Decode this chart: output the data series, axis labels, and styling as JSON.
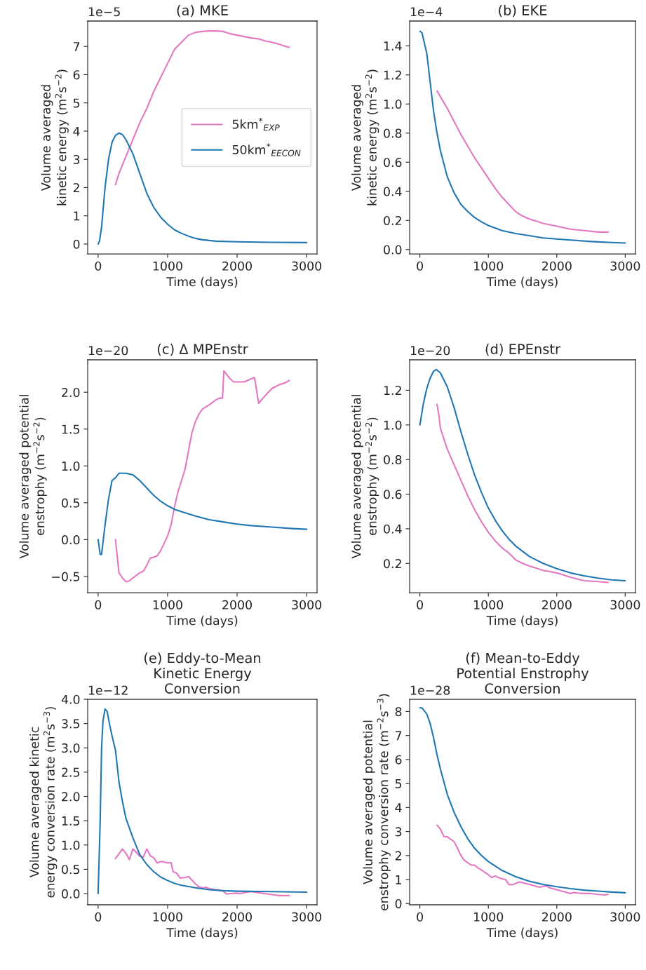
{
  "chart_data": [
    {
      "type": "line",
      "title": "(a) MKE",
      "xlabel": "Time (days)",
      "ylabel": "Volume averaged\nkinetic energy (m$^{2}$s$^{−2}$)",
      "annotations": [
        "1e−5"
      ],
      "xlim": [
        -150,
        3150
      ],
      "xticks": [
        0,
        1000,
        2000,
        3000
      ],
      "ylim": [
        -0.35,
        7.9
      ],
      "yticks": [
        0,
        1,
        2,
        3,
        4,
        5,
        6,
        7
      ],
      "grid": false,
      "legend": "center right",
      "series": [
        {
          "name": "5km$^{*}$$_{EXP}$",
          "color": "#e377c2",
          "x": [
            250,
            300,
            400,
            500,
            600,
            700,
            800,
            900,
            1000,
            1100,
            1200,
            1300,
            1400,
            1500,
            1600,
            1700,
            1800,
            1900,
            2000,
            2100,
            2200,
            2300,
            2400,
            2500,
            2600,
            2700,
            2750
          ],
          "values": [
            2.1,
            2.5,
            3.1,
            3.7,
            4.3,
            4.8,
            5.4,
            5.9,
            6.4,
            6.9,
            7.15,
            7.4,
            7.5,
            7.53,
            7.55,
            7.55,
            7.53,
            7.45,
            7.4,
            7.35,
            7.3,
            7.27,
            7.2,
            7.15,
            7.08,
            7.0,
            6.97
          ]
        },
        {
          "name": "50km$^{*}$$_{EECON}$",
          "color": "#1f77b4",
          "x": [
            0,
            20,
            50,
            100,
            150,
            200,
            250,
            300,
            350,
            400,
            500,
            600,
            700,
            800,
            900,
            1000,
            1100,
            1200,
            1300,
            1400,
            1500,
            1700,
            2000,
            2500,
            3000
          ],
          "values": [
            0.0,
            0.1,
            0.6,
            2.0,
            3.0,
            3.6,
            3.85,
            3.93,
            3.88,
            3.7,
            3.2,
            2.5,
            1.8,
            1.3,
            0.95,
            0.7,
            0.5,
            0.38,
            0.28,
            0.2,
            0.15,
            0.1,
            0.08,
            0.06,
            0.05
          ]
        }
      ]
    },
    {
      "type": "line",
      "title": "(b) EKE",
      "xlabel": "Time (days)",
      "ylabel": "Volume averaged\nkinetic energy (m$^{2}$s$^{−2}$)",
      "annotations": [
        "1e−4"
      ],
      "xlim": [
        -150,
        3150
      ],
      "xticks": [
        0,
        1000,
        2000,
        3000
      ],
      "ylim": [
        -0.03,
        1.57
      ],
      "yticks": [
        {
          "value": 0,
          "label": "0.0"
        },
        0.2,
        0.4,
        0.6,
        0.8,
        {
          "value": 1,
          "label": "1.0"
        },
        1.2,
        1.4
      ],
      "grid": false,
      "series": [
        {
          "color": "#e377c2",
          "x": [
            250,
            300,
            400,
            500,
            600,
            700,
            800,
            900,
            1000,
            1100,
            1200,
            1300,
            1400,
            1500,
            1600,
            1800,
            2000,
            2200,
            2400,
            2600,
            2750
          ],
          "values": [
            1.09,
            1.05,
            0.97,
            0.88,
            0.79,
            0.71,
            0.63,
            0.56,
            0.49,
            0.42,
            0.36,
            0.31,
            0.26,
            0.23,
            0.21,
            0.18,
            0.16,
            0.14,
            0.13,
            0.12,
            0.12
          ]
        },
        {
          "color": "#1f77b4",
          "x": [
            0,
            30,
            100,
            150,
            200,
            250,
            300,
            400,
            500,
            600,
            700,
            800,
            900,
            1000,
            1200,
            1400,
            1600,
            1800,
            2000,
            2200,
            2500,
            2800,
            3000
          ],
          "values": [
            1.5,
            1.49,
            1.35,
            1.15,
            0.95,
            0.8,
            0.68,
            0.5,
            0.39,
            0.31,
            0.26,
            0.22,
            0.19,
            0.165,
            0.13,
            0.11,
            0.095,
            0.08,
            0.072,
            0.065,
            0.055,
            0.048,
            0.045
          ]
        }
      ]
    },
    {
      "type": "line",
      "title": "(c) Δ MPEnstr",
      "xlabel": "Time (days)",
      "ylabel": "Volume averaged potential\nenstrophy (m$^{−2}$s$^{−2}$)",
      "annotations": [
        "1e−20"
      ],
      "xlim": [
        -150,
        3150
      ],
      "xticks": [
        0,
        1000,
        2000,
        3000
      ],
      "ylim": [
        -0.72,
        2.44
      ],
      "yticks": [
        {
          "value": -0.5,
          "label": "−0.5"
        },
        {
          "value": 0,
          "label": "0.0"
        },
        0.5,
        {
          "value": 1,
          "label": "1.0"
        },
        1.5,
        {
          "value": 2,
          "label": "2.0"
        }
      ],
      "grid": false,
      "series": [
        {
          "color": "#e377c2",
          "x": [
            250,
            300,
            350,
            400,
            450,
            500,
            600,
            650,
            700,
            750,
            800,
            850,
            900,
            1000,
            1050,
            1100,
            1150,
            1200,
            1250,
            1300,
            1350,
            1400,
            1450,
            1500,
            1600,
            1700,
            1750,
            1790,
            1810,
            1900,
            1950,
            2100,
            2200,
            2250,
            2310,
            2400,
            2500,
            2600,
            2700,
            2750
          ],
          "values": [
            0.0,
            -0.45,
            -0.52,
            -0.57,
            -0.56,
            -0.52,
            -0.45,
            -0.43,
            -0.35,
            -0.25,
            -0.24,
            -0.22,
            -0.15,
            0.05,
            0.2,
            0.45,
            0.65,
            0.8,
            0.95,
            1.2,
            1.45,
            1.6,
            1.7,
            1.77,
            1.83,
            1.9,
            1.92,
            1.92,
            2.29,
            2.18,
            2.14,
            2.14,
            2.18,
            2.2,
            1.85,
            1.95,
            2.05,
            2.1,
            2.13,
            2.16
          ]
        },
        {
          "color": "#1f77b4",
          "x": [
            0,
            30,
            50,
            100,
            150,
            200,
            250,
            300,
            400,
            500,
            600,
            700,
            800,
            900,
            1000,
            1100,
            1200,
            1400,
            1600,
            1800,
            2000,
            2200,
            2500,
            2800,
            3000
          ],
          "values": [
            0.0,
            -0.2,
            -0.2,
            0.2,
            0.55,
            0.8,
            0.84,
            0.9,
            0.9,
            0.88,
            0.8,
            0.7,
            0.6,
            0.52,
            0.46,
            0.41,
            0.38,
            0.32,
            0.27,
            0.24,
            0.21,
            0.19,
            0.17,
            0.15,
            0.14
          ]
        }
      ]
    },
    {
      "type": "line",
      "title": "(d) EPEnstr",
      "xlabel": "Time (days)",
      "ylabel": "Volume averaged potential\nenstrophy (m$^{−2}$s$^{−2}$)",
      "annotations": [
        "1e−20"
      ],
      "xlim": [
        -150,
        3150
      ],
      "xticks": [
        0,
        1000,
        2000,
        3000
      ],
      "ylim": [
        0.031,
        1.376
      ],
      "yticks": [
        0.2,
        0.4,
        0.6,
        0.8,
        {
          "value": 1,
          "label": "1.0"
        },
        1.2
      ],
      "grid": false,
      "series": [
        {
          "color": "#e377c2",
          "x": [
            250,
            280,
            300,
            400,
            500,
            600,
            700,
            800,
            900,
            1000,
            1100,
            1200,
            1300,
            1400,
            1500,
            1600,
            1800,
            2000,
            2200,
            2400,
            2600,
            2750
          ],
          "values": [
            1.12,
            1.05,
            0.98,
            0.86,
            0.77,
            0.68,
            0.59,
            0.51,
            0.44,
            0.38,
            0.33,
            0.29,
            0.26,
            0.22,
            0.2,
            0.185,
            0.16,
            0.145,
            0.12,
            0.1,
            0.095,
            0.09
          ]
        },
        {
          "color": "#1f77b4",
          "x": [
            0,
            50,
            100,
            150,
            200,
            240,
            300,
            400,
            500,
            600,
            700,
            800,
            900,
            1000,
            1100,
            1200,
            1300,
            1400,
            1600,
            1800,
            2000,
            2200,
            2400,
            2600,
            2800,
            3000
          ],
          "values": [
            1.0,
            1.12,
            1.21,
            1.27,
            1.31,
            1.32,
            1.3,
            1.22,
            1.1,
            0.96,
            0.83,
            0.71,
            0.61,
            0.52,
            0.45,
            0.39,
            0.34,
            0.3,
            0.24,
            0.2,
            0.17,
            0.145,
            0.128,
            0.115,
            0.105,
            0.1
          ]
        }
      ]
    },
    {
      "type": "line",
      "title": "(e) Eddy-to-Mean\nKinetic Energy\nConversion",
      "xlabel": "Time (days)",
      "ylabel": "Volume averaged kinetic\nenergy conversion rate (m$^{2}$s$^{−3}$)",
      "annotations": [
        "1e−12"
      ],
      "xlim": [
        -150,
        3150
      ],
      "xticks": [
        0,
        1000,
        2000,
        3000
      ],
      "ylim": [
        -0.23,
        4.0
      ],
      "yticks": [
        {
          "value": 0,
          "label": "0.0"
        },
        0.5,
        {
          "value": 1,
          "label": "1.0"
        },
        1.5,
        {
          "value": 2,
          "label": "2.0"
        },
        2.5,
        {
          "value": 3,
          "label": "3.0"
        },
        3.5,
        {
          "value": 4,
          "label": "4.0"
        }
      ],
      "grid": false,
      "series": [
        {
          "color": "#e377c2",
          "x": [
            250,
            300,
            350,
            400,
            450,
            500,
            550,
            600,
            650,
            700,
            750,
            800,
            850,
            900,
            950,
            1000,
            1050,
            1080,
            1130,
            1180,
            1250,
            1300,
            1400,
            1450,
            1500,
            1550,
            1600,
            1700,
            1800,
            1850,
            1900,
            2000,
            2050,
            2100,
            2200,
            2300,
            2400,
            2500,
            2600,
            2750
          ],
          "values": [
            0.72,
            0.82,
            0.92,
            0.83,
            0.7,
            0.92,
            0.85,
            0.77,
            0.75,
            0.92,
            0.78,
            0.74,
            0.63,
            0.66,
            0.65,
            0.63,
            0.64,
            0.45,
            0.42,
            0.32,
            0.33,
            0.35,
            0.2,
            0.14,
            0.12,
            0.13,
            0.1,
            0.08,
            0.05,
            -0.01,
            0.0,
            0.01,
            0.0,
            0.02,
            0.04,
            0.02,
            0.0,
            -0.02,
            -0.04,
            -0.04
          ]
        },
        {
          "color": "#1f77b4",
          "x": [
            0,
            30,
            50,
            70,
            100,
            130,
            170,
            200,
            250,
            300,
            350,
            400,
            500,
            600,
            700,
            800,
            900,
            1000,
            1100,
            1200,
            1400,
            1600,
            1800,
            2000,
            2500,
            3000
          ],
          "values": [
            0.0,
            1.5,
            3.0,
            3.55,
            3.8,
            3.75,
            3.45,
            3.25,
            2.95,
            2.3,
            1.9,
            1.55,
            1.15,
            0.8,
            0.6,
            0.45,
            0.34,
            0.27,
            0.21,
            0.17,
            0.12,
            0.08,
            0.06,
            0.05,
            0.04,
            0.03
          ]
        }
      ]
    },
    {
      "type": "line",
      "title": "(f) Mean-to-Eddy\nPotential Enstrophy\nConversion",
      "xlabel": "Time (days)",
      "ylabel": "Volume averaged potential\nenstrophy conversion rate (m$^{−2}$s$^{−3}$)",
      "annotations": [
        "1e−28"
      ],
      "xlim": [
        -150,
        3150
      ],
      "xticks": [
        0,
        1000,
        2000,
        3000
      ],
      "ylim": [
        -0.05,
        8.51
      ],
      "yticks": [
        0,
        1,
        2,
        3,
        4,
        5,
        6,
        7,
        8
      ],
      "grid": false,
      "series": [
        {
          "color": "#e377c2",
          "x": [
            250,
            300,
            350,
            400,
            450,
            500,
            550,
            600,
            650,
            700,
            750,
            800,
            850,
            900,
            950,
            1000,
            1050,
            1100,
            1150,
            1200,
            1250,
            1300,
            1350,
            1450,
            1500,
            1600,
            1700,
            1750,
            1800,
            1850,
            1900,
            2000,
            2100,
            2200,
            2250,
            2300,
            2400,
            2500,
            2600,
            2700,
            2750
          ],
          "values": [
            3.27,
            3.1,
            2.8,
            2.78,
            2.68,
            2.58,
            2.3,
            2.0,
            1.8,
            1.7,
            1.6,
            1.6,
            1.48,
            1.4,
            1.3,
            1.2,
            1.08,
            1.15,
            1.08,
            1.03,
            1.0,
            0.8,
            0.78,
            0.9,
            0.87,
            0.8,
            0.72,
            0.68,
            0.72,
            0.74,
            0.65,
            0.58,
            0.5,
            0.42,
            0.46,
            0.44,
            0.42,
            0.42,
            0.38,
            0.36,
            0.38
          ]
        },
        {
          "color": "#1f77b4",
          "x": [
            0,
            30,
            100,
            150,
            200,
            250,
            300,
            400,
            500,
            600,
            700,
            800,
            900,
            1000,
            1200,
            1400,
            1600,
            1800,
            2000,
            2200,
            2400,
            2600,
            2800,
            3000
          ],
          "values": [
            8.15,
            8.15,
            7.9,
            7.5,
            6.9,
            6.2,
            5.6,
            4.55,
            3.8,
            3.2,
            2.7,
            2.3,
            2.0,
            1.75,
            1.38,
            1.12,
            0.93,
            0.8,
            0.7,
            0.62,
            0.56,
            0.52,
            0.48,
            0.45
          ]
        }
      ]
    }
  ]
}
